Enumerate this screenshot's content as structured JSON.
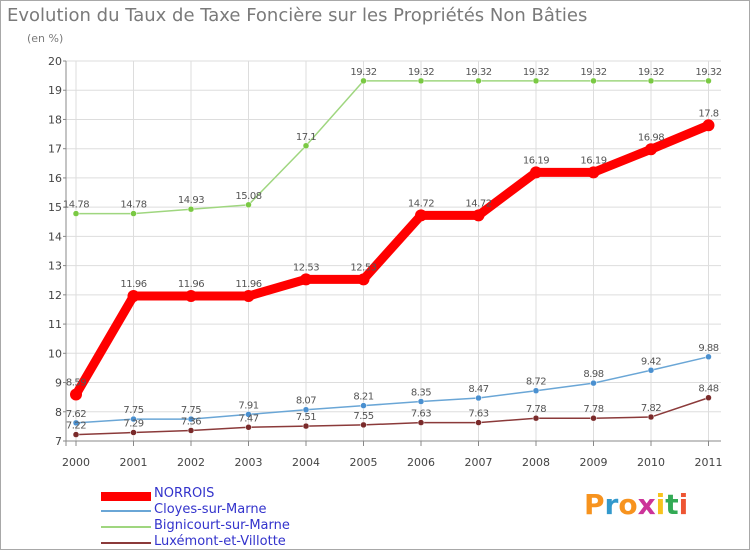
{
  "chart_data": {
    "type": "line",
    "title": "Evolution du Taux de Taxe Foncière sur les Propriétés Non Bâties",
    "subtitle": "(en %)",
    "categories": [
      "2000",
      "2001",
      "2002",
      "2003",
      "2004",
      "2005",
      "2006",
      "2007",
      "2008",
      "2009",
      "2010",
      "2011"
    ],
    "ylim": [
      7,
      20
    ],
    "yticks": [
      "7",
      "8",
      "9",
      "10",
      "11",
      "12",
      "13",
      "14",
      "15",
      "16",
      "17",
      "18",
      "19",
      "20"
    ],
    "grid": true,
    "series": [
      {
        "name": "Bignicourt-sur-Marne",
        "color": "#9fd67f",
        "markerColor": "#7ac943",
        "values": [
          14.78,
          14.78,
          14.93,
          15.08,
          17.1,
          19.32,
          19.32,
          19.32,
          19.32,
          19.32,
          19.32,
          19.32
        ],
        "labels": [
          "14.78",
          "14.78",
          "14.93",
          "15.08",
          "17.1",
          "19.32",
          "19.32",
          "19.32",
          "19.32",
          "19.32",
          "19.32",
          "19.32"
        ]
      },
      {
        "name": "Cloyes-sur-Marne",
        "color": "#6aa6d6",
        "markerColor": "#4a90d0",
        "values": [
          7.62,
          7.75,
          7.75,
          7.91,
          8.07,
          8.21,
          8.35,
          8.47,
          8.72,
          8.98,
          9.42,
          9.88
        ],
        "labels": [
          "7.62",
          "7.75",
          "7.75",
          "7.91",
          "8.07",
          "8.21",
          "8.35",
          "8.47",
          "8.72",
          "8.98",
          "9.42",
          "9.88"
        ]
      },
      {
        "name": "Luxémont-et-Villotte",
        "color": "#8b3a3a",
        "markerColor": "#7a2a2a",
        "values": [
          7.22,
          7.29,
          7.36,
          7.47,
          7.51,
          7.55,
          7.63,
          7.63,
          7.78,
          7.78,
          7.82,
          8.48
        ],
        "labels": [
          "7.22",
          "7.29",
          "7.36",
          "7.47",
          "7.51",
          "7.55",
          "7.63",
          "7.63",
          "7.78",
          "7.78",
          "7.82",
          "8.48"
        ]
      },
      {
        "name": "NORROIS",
        "color": "#ff0000",
        "markerColor": "#ff0000",
        "values": [
          8.59,
          11.96,
          11.96,
          11.96,
          12.53,
          12.53,
          14.72,
          14.72,
          16.19,
          16.19,
          16.98,
          17.8
        ],
        "labels": [
          "8.59",
          "11.96",
          "11.96",
          "11.96",
          "12.53",
          "12.53",
          "14.72",
          "14.72",
          "16.19",
          "16.19",
          "16.98",
          "17.8"
        ]
      }
    ],
    "legend": [
      {
        "name": "NORROIS",
        "color": "#ff0000",
        "textColor": "#3333cc"
      },
      {
        "name": "Cloyes-sur-Marne",
        "color": "#6aa6d6",
        "textColor": "#3333cc"
      },
      {
        "name": "Bignicourt-sur-Marne",
        "color": "#9fd67f",
        "textColor": "#3333cc"
      },
      {
        "name": "Luxémont-et-Villotte",
        "color": "#8b3a3a",
        "textColor": "#3333cc"
      }
    ]
  },
  "logo": {
    "text": "Proxiti",
    "colors": [
      "#f7931e",
      "#3399cc",
      "#f7931e",
      "#cc3399",
      "#f7c31e",
      "#33aa55",
      "#ee5533"
    ]
  }
}
